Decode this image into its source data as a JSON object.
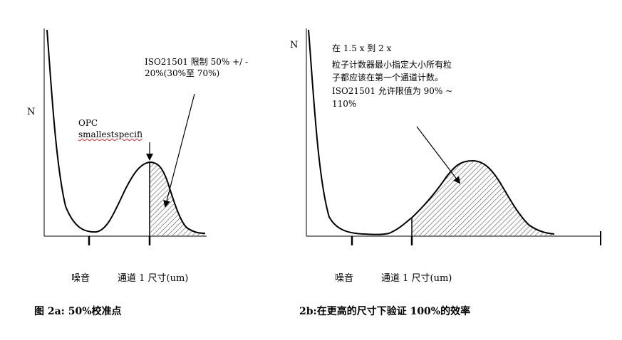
{
  "left": {
    "y_label": "N",
    "opc_line1": "OPC",
    "opc_line2": "smallestspecifi",
    "iso_line1": "ISO21501 限制 50%  +/ -",
    "iso_line2": "20%(30%至 70%)",
    "x_label_noise": "噪音",
    "x_label_channel": "通道 1 尺寸(um)",
    "caption": "图 2a: 50%校准点"
  },
  "right": {
    "y_label": "N",
    "note_line1": "在 1.5  x 到 2  x",
    "note_line2": "粒子计数器最小指定大小所有粒",
    "note_line3": "子都应该在第一个通道计数。",
    "note_line4": "ISO21501 允许限值为 90%  ~",
    "note_line5": "110%",
    "x_label_noise": "噪音",
    "x_label_channel": "通道 1 尺寸(um)",
    "caption": "2b:在更高的尺寸下验证 100%的效率"
  },
  "colors": {
    "ink": "#000000",
    "hatch": "#555555",
    "underline": "#d03030"
  }
}
